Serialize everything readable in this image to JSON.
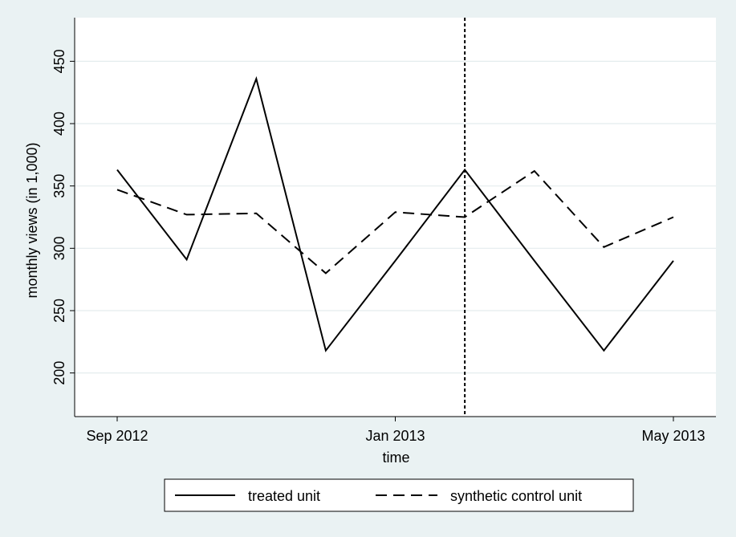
{
  "chart_data": {
    "type": "line",
    "xlabel": "time",
    "ylabel": "monthly views (in 1,000)",
    "x": [
      "2012-09",
      "2012-10",
      "2012-11",
      "2012-12",
      "2013-01",
      "2013-02",
      "2013-03",
      "2013-04",
      "2013-05"
    ],
    "x_ticks": [
      {
        "x": "2012-09",
        "label": "Sep 2012"
      },
      {
        "x": "2013-01",
        "label": "Jan 2013"
      },
      {
        "x": "2013-05",
        "label": "May 2013"
      }
    ],
    "y_ticks": [
      200,
      250,
      300,
      350,
      400,
      450
    ],
    "ylim": [
      165,
      485
    ],
    "vline_x": "2013-02",
    "grid": true,
    "legend_position": "bottom",
    "series": [
      {
        "name": "treated unit",
        "style": "solid",
        "values": [
          363,
          291,
          436,
          218,
          290,
          363,
          290,
          218,
          290
        ]
      },
      {
        "name": "synthetic control unit",
        "style": "dashed",
        "values": [
          347,
          327,
          328,
          280,
          329,
          325,
          362,
          301,
          325
        ]
      }
    ]
  },
  "colors": {
    "background": "#eaf2f3",
    "plot_area": "#ffffff",
    "grid": "#e4ecee",
    "line": "#000000"
  }
}
